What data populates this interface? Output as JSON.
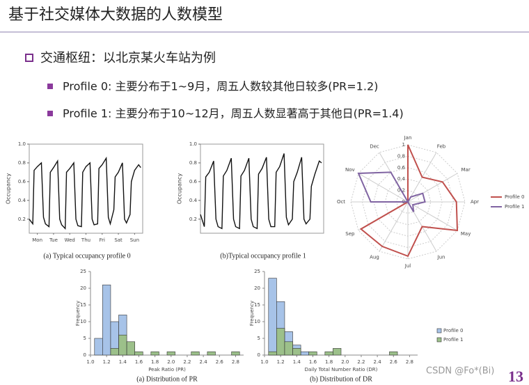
{
  "header": {
    "title": "基于社交媒体大数据的人数模型"
  },
  "bullets": {
    "main": "交通枢纽：以北京某火车站为例",
    "items": [
      "Profile 0: 主要分布于1~9月，周五人数较其他日较多(PR=1.2)",
      "Profile 1: 主要分布于10~12月，周五人数显著高于其他日(PR=1.4)"
    ]
  },
  "footer": {
    "watermark": "CSDN @Fo*(Bi)",
    "page": "13"
  },
  "chart_data": [
    {
      "type": "line",
      "caption": "(a) Typical occupancy profile 0",
      "ylabel": "Occupancy",
      "x": [
        0,
        0.22,
        0.3,
        0.5,
        0.75,
        0.88,
        1,
        1.22,
        1.3,
        1.5,
        1.75,
        1.88,
        2,
        2.22,
        2.3,
        2.5,
        2.75,
        2.88,
        3,
        3.22,
        3.3,
        3.5,
        3.75,
        3.88,
        4,
        4.22,
        4.3,
        4.5,
        4.75,
        4.88,
        5,
        5.22,
        5.3,
        5.5,
        5.75,
        5.88,
        6,
        6.22,
        6.3,
        6.5,
        6.75,
        6.88
      ],
      "series": [
        {
          "color": "#111111",
          "values": [
            0.2,
            0.15,
            0.72,
            0.76,
            0.8,
            0.22,
            0.15,
            0.12,
            0.7,
            0.75,
            0.82,
            0.2,
            0.14,
            0.1,
            0.7,
            0.74,
            0.8,
            0.2,
            0.13,
            0.12,
            0.7,
            0.76,
            0.8,
            0.2,
            0.14,
            0.15,
            0.74,
            0.78,
            0.85,
            0.22,
            0.15,
            0.3,
            0.65,
            0.7,
            0.8,
            0.2,
            0.16,
            0.25,
            0.6,
            0.72,
            0.78,
            0.75
          ]
        }
      ],
      "xlim": [
        0,
        7
      ],
      "xticks": [
        {
          "value": 0.5,
          "label": "Mon"
        },
        {
          "value": 1.5,
          "label": "Tue"
        },
        {
          "value": 2.5,
          "label": "Wed"
        },
        {
          "value": 3.5,
          "label": "Thu"
        },
        {
          "value": 4.5,
          "label": "Fri"
        },
        {
          "value": 5.5,
          "label": "Sat"
        },
        {
          "value": 6.5,
          "label": "Sun"
        }
      ],
      "ylim": [
        0.05,
        1
      ],
      "yticks": [
        0.2,
        0.4,
        0.6,
        0.8,
        {
          "value": 1,
          "label": "1.0"
        }
      ]
    },
    {
      "type": "line",
      "caption": "(b)Typical occupancy profile 1",
      "ylabel": "Occupancy",
      "x": [
        0,
        0.22,
        0.3,
        0.5,
        0.75,
        0.88,
        1,
        1.22,
        1.3,
        1.5,
        1.75,
        1.88,
        2,
        2.22,
        2.3,
        2.5,
        2.75,
        2.88,
        3,
        3.22,
        3.3,
        3.5,
        3.75,
        3.88,
        4,
        4.22,
        4.3,
        4.5,
        4.75,
        4.88,
        5,
        5.22,
        5.3,
        5.5,
        5.75,
        5.88,
        6,
        6.22,
        6.3,
        6.5,
        6.75,
        6.88
      ],
      "series": [
        {
          "color": "#111111",
          "values": [
            0.25,
            0.12,
            0.65,
            0.7,
            0.82,
            0.2,
            0.12,
            0.1,
            0.66,
            0.72,
            0.85,
            0.2,
            0.12,
            0.1,
            0.66,
            0.72,
            0.85,
            0.2,
            0.12,
            0.1,
            0.68,
            0.74,
            0.86,
            0.2,
            0.12,
            0.12,
            0.7,
            0.76,
            0.9,
            0.22,
            0.14,
            0.2,
            0.6,
            0.7,
            0.86,
            0.2,
            0.15,
            0.2,
            0.55,
            0.68,
            0.82,
            0.8
          ]
        }
      ],
      "xlim": [
        0,
        7
      ],
      "xticks": [],
      "ylim": [
        0.05,
        1
      ],
      "yticks": [
        0.2,
        0.4,
        0.6,
        0.8,
        {
          "value": 1,
          "label": "1.0"
        }
      ]
    },
    {
      "type": "radar",
      "categories": [
        "Jan",
        "Feb",
        "Mar",
        "Apr",
        "May",
        "Jun",
        "Jul",
        "Aug",
        "Sep",
        "Oct",
        "Nov",
        "Dec"
      ],
      "series": [
        {
          "name": "Profile 0",
          "color": "#c0504d",
          "values": [
            1,
            0.5,
            0.7,
            0.85,
            1,
            0.5,
            0.95,
            0.9,
            0.95,
            0,
            0,
            0
          ]
        },
        {
          "name": "Profile 1",
          "color": "#8064a2",
          "values": [
            0,
            0.1,
            0.3,
            0.3,
            0.1,
            0.2,
            0,
            0,
            0,
            0.65,
            1,
            0.6
          ]
        }
      ],
      "rlim": [
        0,
        1
      ],
      "rticks": [
        0,
        0.2,
        0.4,
        0.6,
        0.8,
        1
      ]
    },
    {
      "type": "histogram",
      "caption": "(a) Distribution of PR",
      "xlabel": "Peak Ratio (PR)",
      "ylabel": "Frequency",
      "bins": [
        1.05,
        1.15,
        1.25,
        1.35,
        1.45,
        1.55,
        1.65,
        1.75,
        1.85,
        1.95,
        2.05,
        2.15,
        2.25,
        2.35,
        2.45,
        2.55,
        2.65,
        2.75,
        2.85
      ],
      "series": [
        {
          "color": "#a7c3e8",
          "values": [
            5,
            21,
            10,
            12,
            3,
            0,
            0,
            0,
            0,
            0,
            0,
            0,
            0,
            0,
            0,
            0,
            0,
            0
          ]
        },
        {
          "color": "#9cc08a",
          "values": [
            0,
            0,
            2,
            6,
            4,
            1,
            0,
            1,
            0,
            1,
            0,
            0,
            1,
            0,
            1,
            0,
            0,
            1
          ]
        }
      ],
      "xlim": [
        1,
        2.9
      ],
      "xticks": [
        {
          "value": 1,
          "label": "1.0"
        },
        1.2,
        1.4,
        1.6,
        1.8,
        {
          "value": 2,
          "label": "2.0"
        },
        2.2,
        2.4,
        2.6,
        2.8
      ],
      "ylim": [
        0,
        25
      ],
      "yticks": [
        0,
        5,
        10,
        15,
        20,
        25
      ]
    },
    {
      "type": "histogram",
      "caption": "(b) Distribution of DR",
      "xlabel": "Daily Total Number Ratio (DR)",
      "ylabel": "Frequency",
      "bins": [
        1.05,
        1.15,
        1.25,
        1.35,
        1.45,
        1.55,
        1.65,
        1.75,
        1.85,
        1.95,
        2.05,
        2.15,
        2.25,
        2.35,
        2.45,
        2.55,
        2.65,
        2.75,
        2.85
      ],
      "series": [
        {
          "name": "Profile 0",
          "color": "#a7c3e8",
          "values": [
            23,
            16,
            7,
            3,
            1,
            0,
            0,
            0,
            0,
            0,
            0,
            0,
            0,
            0,
            0,
            0,
            0,
            0
          ]
        },
        {
          "name": "Profile 1",
          "color": "#9cc08a",
          "values": [
            1,
            8,
            4,
            2,
            0,
            1,
            0,
            1,
            2,
            0,
            0,
            0,
            0,
            0,
            0,
            1,
            0,
            0
          ]
        }
      ],
      "xlim": [
        1,
        2.9
      ],
      "xticks": [
        {
          "value": 1,
          "label": "1.0"
        },
        1.2,
        1.4,
        1.6,
        1.8,
        {
          "value": 2,
          "label": "2.0"
        },
        2.2,
        2.4,
        2.6,
        2.8
      ],
      "ylim": [
        0,
        25
      ],
      "yticks": [
        0,
        5,
        10,
        15,
        20,
        25
      ]
    }
  ]
}
